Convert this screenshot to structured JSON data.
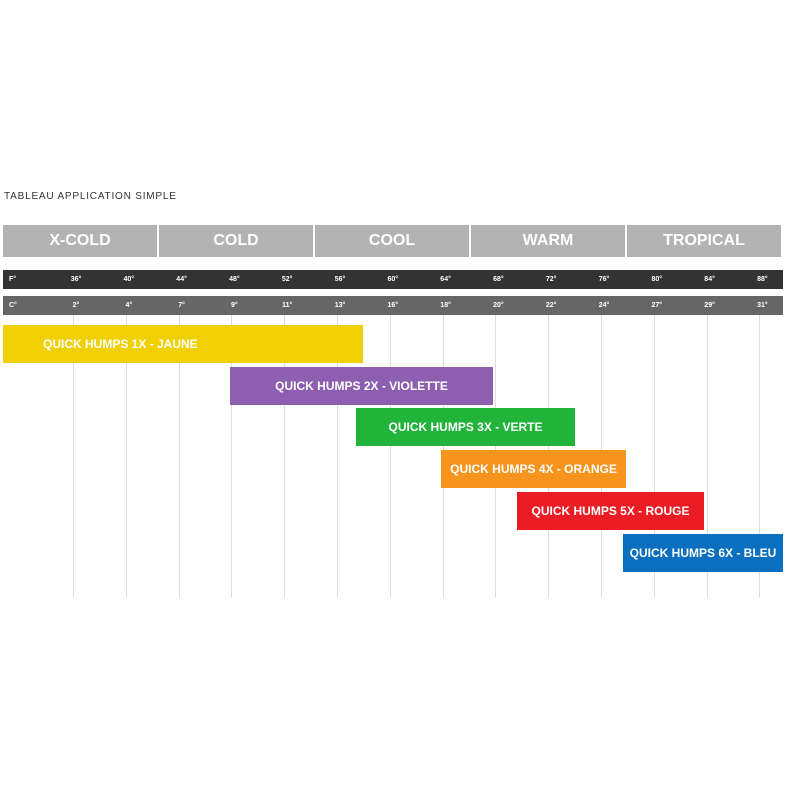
{
  "title": "TABLEAU APPLICATION SIMPLE",
  "zones": [
    "X-COLD",
    "COLD",
    "COOL",
    "WARM",
    "TROPICAL"
  ],
  "fahrenheit": {
    "unit": "F°",
    "labels": [
      "36°",
      "40°",
      "44°",
      "48°",
      "52°",
      "56°",
      "60°",
      "64°",
      "68°",
      "72°",
      "76°",
      "80°",
      "84°",
      "88°"
    ]
  },
  "celsius": {
    "unit": "C°",
    "labels": [
      "2°",
      "4°",
      "7°",
      "9°",
      "11°",
      "13°",
      "16°",
      "18°",
      "20°",
      "22°",
      "24°",
      "27°",
      "29°",
      "31°"
    ]
  },
  "products": [
    {
      "label": "QUICK HUMPS 1X - JAUNE",
      "color": "#f0d000"
    },
    {
      "label": "QUICK HUMPS 2X - VIOLETTE",
      "color": "#8e5fb0"
    },
    {
      "label": "QUICK HUMPS 3X - VERTE",
      "color": "#22b33a"
    },
    {
      "label": "QUICK HUMPS 4X - ORANGE",
      "color": "#f7941d"
    },
    {
      "label": "QUICK HUMPS 5X - ROUGE",
      "color": "#ec1c24"
    },
    {
      "label": "QUICK HUMPS 6X - BLEU",
      "color": "#0a6fbf"
    }
  ]
}
